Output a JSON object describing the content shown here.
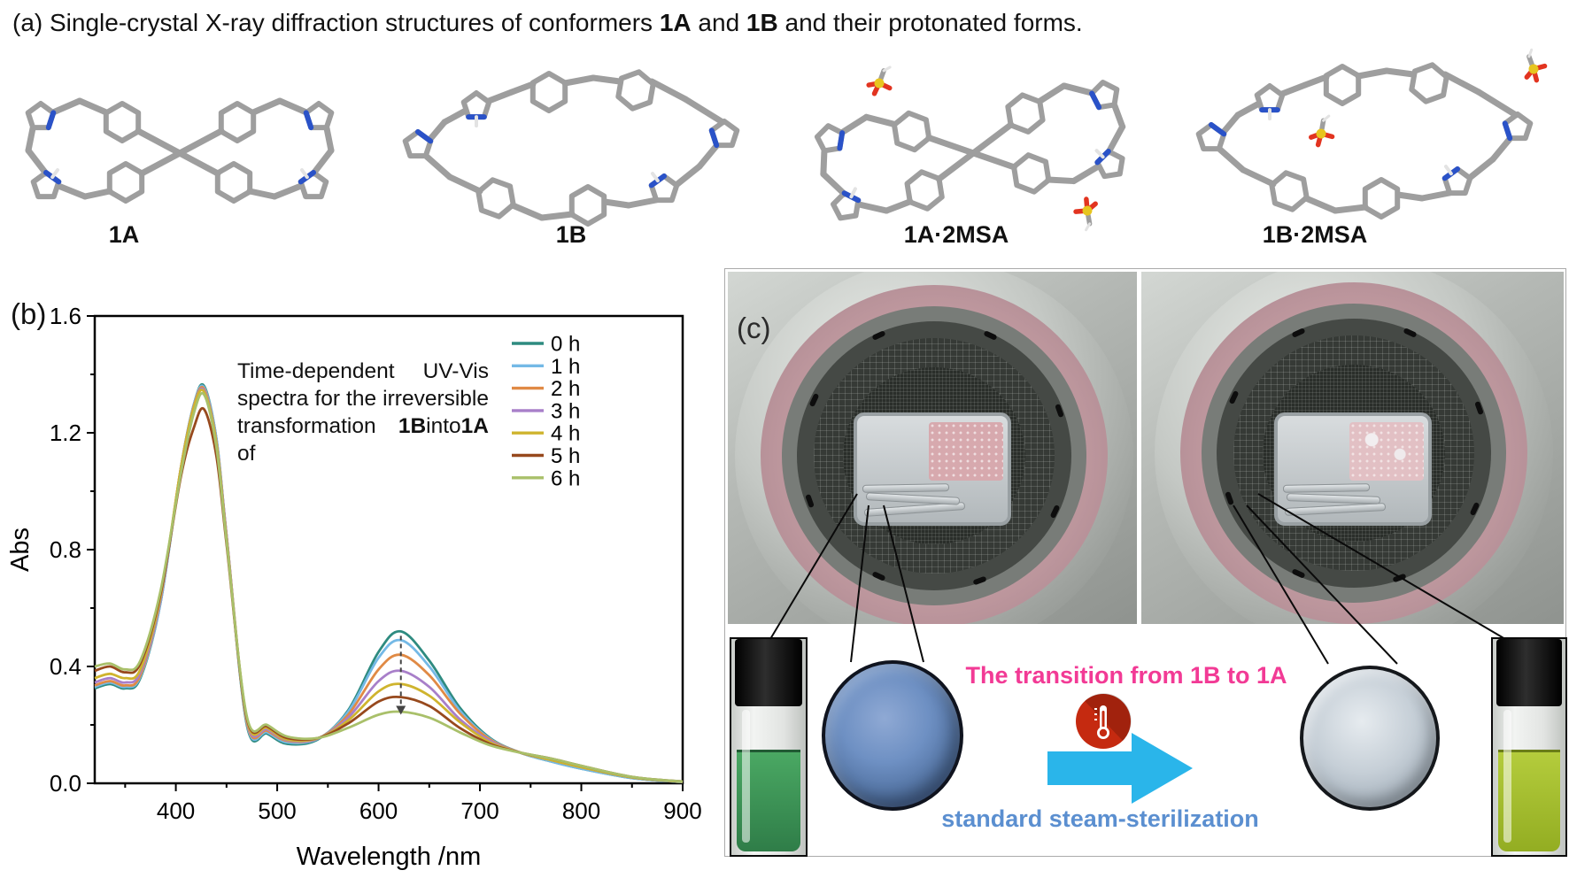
{
  "header": {
    "panel_label": "(a) ",
    "parts": [
      "Single-crystal X-ray diffraction structures of conformers ",
      "1A",
      " and ",
      "1B",
      " and their protonated forms."
    ]
  },
  "structures": {
    "labels": [
      "1A",
      "1B",
      "1A·2MSA",
      "1B·2MSA"
    ],
    "atom_colors": {
      "carbon": "#9e9e9e",
      "nitrogen": "#2a52c8",
      "hydrogen": "#e3e3e3",
      "sulfur": "#e7c51f",
      "oxygen": "#e23420"
    }
  },
  "panel_b": {
    "label": "(b)",
    "annotation": {
      "w1": "Time-dependent",
      "w2": "UV-Vis",
      "line2": "spectra for the irreversible",
      "w3": "transformation of",
      "w4": "1B",
      "w5": "into",
      "w6": "1A"
    }
  },
  "chart_data": {
    "type": "line",
    "title": "",
    "xlabel": "Wavelength /nm",
    "ylabel": "Abs",
    "xlim": [
      320,
      900
    ],
    "ylim": [
      0,
      1.6
    ],
    "x_ticks": [
      400,
      500,
      600,
      700,
      800,
      900
    ],
    "x_minor_step": 50,
    "y_ticks": [
      0,
      0.4,
      0.8,
      1.2,
      1.6
    ],
    "y_minor_step": 0.2,
    "grid": false,
    "legend_position": "top-right",
    "x": [
      320,
      335,
      350,
      365,
      385,
      405,
      418,
      428,
      440,
      450,
      470,
      490,
      510,
      540,
      570,
      600,
      622,
      650,
      680,
      710,
      740,
      770,
      800,
      850,
      900
    ],
    "series": [
      {
        "name": "0 h",
        "color": "#2e8b80",
        "values": [
          0.325,
          0.34,
          0.325,
          0.36,
          0.62,
          1.08,
          1.3,
          1.36,
          1.18,
          0.85,
          0.2,
          0.17,
          0.135,
          0.15,
          0.25,
          0.45,
          0.52,
          0.42,
          0.26,
          0.155,
          0.105,
          0.075,
          0.05,
          0.018,
          0.004
        ]
      },
      {
        "name": "1 h",
        "color": "#74b9e6",
        "values": [
          0.33,
          0.345,
          0.33,
          0.365,
          0.62,
          1.08,
          1.3,
          1.355,
          1.18,
          0.85,
          0.205,
          0.175,
          0.14,
          0.152,
          0.245,
          0.43,
          0.49,
          0.4,
          0.25,
          0.152,
          0.105,
          0.075,
          0.05,
          0.018,
          0.004
        ]
      },
      {
        "name": "2 h",
        "color": "#e08a45",
        "values": [
          0.335,
          0.35,
          0.335,
          0.37,
          0.63,
          1.08,
          1.295,
          1.35,
          1.17,
          0.85,
          0.21,
          0.18,
          0.145,
          0.153,
          0.235,
          0.39,
          0.44,
          0.37,
          0.24,
          0.15,
          0.105,
          0.08,
          0.055,
          0.02,
          0.005
        ]
      },
      {
        "name": "3 h",
        "color": "#a87fc9",
        "values": [
          0.345,
          0.36,
          0.345,
          0.38,
          0.63,
          1.08,
          1.29,
          1.345,
          1.17,
          0.85,
          0.215,
          0.185,
          0.148,
          0.153,
          0.225,
          0.35,
          0.385,
          0.33,
          0.22,
          0.145,
          0.105,
          0.08,
          0.055,
          0.02,
          0.005
        ]
      },
      {
        "name": "4 h",
        "color": "#cfb42e",
        "values": [
          0.36,
          0.375,
          0.36,
          0.39,
          0.64,
          1.08,
          1.29,
          1.34,
          1.165,
          0.84,
          0.22,
          0.19,
          0.15,
          0.154,
          0.215,
          0.315,
          0.34,
          0.3,
          0.21,
          0.14,
          0.105,
          0.08,
          0.055,
          0.02,
          0.005
        ]
      },
      {
        "name": "5 h",
        "color": "#97491d",
        "values": [
          0.385,
          0.4,
          0.38,
          0.41,
          0.65,
          1.05,
          1.22,
          1.28,
          1.12,
          0.82,
          0.225,
          0.195,
          0.155,
          0.155,
          0.205,
          0.28,
          0.295,
          0.265,
          0.19,
          0.135,
          0.105,
          0.085,
          0.06,
          0.022,
          0.006
        ]
      },
      {
        "name": "6 h",
        "color": "#a9c06a",
        "values": [
          0.4,
          0.41,
          0.39,
          0.42,
          0.66,
          1.06,
          1.27,
          1.33,
          1.15,
          0.83,
          0.23,
          0.2,
          0.16,
          0.155,
          0.19,
          0.235,
          0.245,
          0.225,
          0.175,
          0.13,
          0.105,
          0.085,
          0.06,
          0.022,
          0.006
        ]
      }
    ],
    "arrow": {
      "x": 622,
      "y_from": 0.505,
      "y_to": 0.235
    }
  },
  "panel_c": {
    "label": "(c)",
    "transition_text": "The transition from 1B to 1A",
    "process_text": "standard steam-sterilization",
    "transition_color": "#f23a95",
    "process_color": "#5b8fd0",
    "arrow_color": "#2ab5ea",
    "thermometer_color": "#c52a10"
  }
}
